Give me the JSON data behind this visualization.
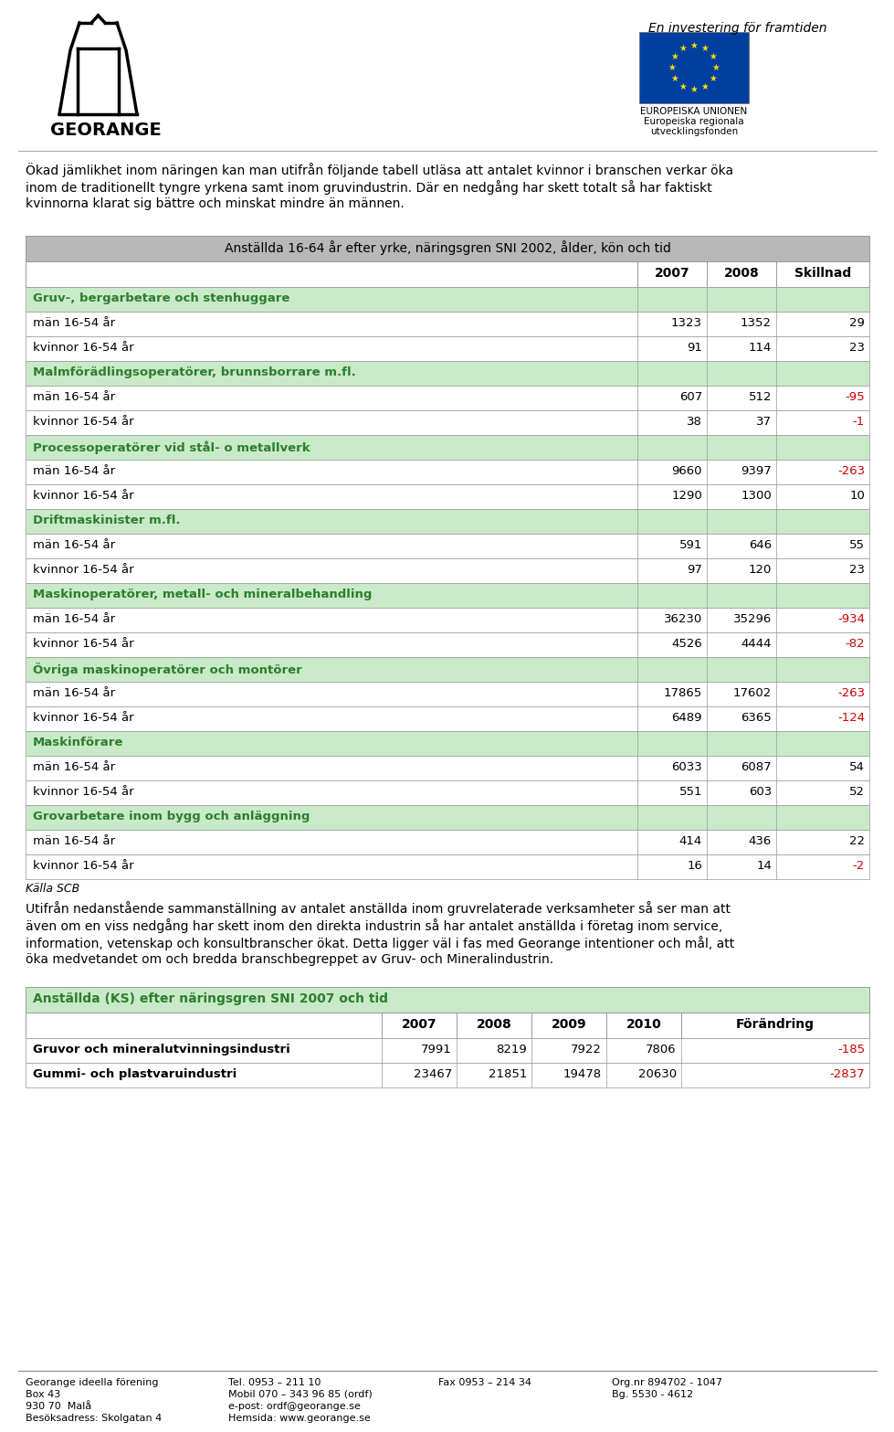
{
  "page_bg": "#ffffff",
  "top_italic_text": "En investering för framtiden",
  "intro_text": "Ökad jämlikhet inom näringen kan man utifrån följande tabell utläsa att antalet kvinnor i branschen verkar öka\ninom de traditionellt tyngre yrkena samt inom gruvindustrin. Där en nedgång har skett totalt så har faktiskt\nkvinnorna klarat sig bättre och minskat mindre än männen.",
  "table1_title": "Anställda 16-64 år efter yrke, näringsgren SNI 2002, ålder, kön och tid",
  "table1_rows": [
    {
      "label": "Gruv-, bergarbetare och stenhuggare",
      "v2007": "",
      "v2008": "",
      "skillnad": "",
      "is_category": true,
      "skillnad_neg": false
    },
    {
      "label": "män 16-54 år",
      "v2007": "1323",
      "v2008": "1352",
      "skillnad": "29",
      "is_category": false,
      "skillnad_neg": false
    },
    {
      "label": "kvinnor 16-54 år",
      "v2007": "91",
      "v2008": "114",
      "skillnad": "23",
      "is_category": false,
      "skillnad_neg": false
    },
    {
      "label": "Malmförädlingsoperatörer, brunnsborrare m.fl.",
      "v2007": "",
      "v2008": "",
      "skillnad": "",
      "is_category": true,
      "skillnad_neg": false
    },
    {
      "label": "män 16-54 år",
      "v2007": "607",
      "v2008": "512",
      "skillnad": "-95",
      "is_category": false,
      "skillnad_neg": true
    },
    {
      "label": "kvinnor 16-54 år",
      "v2007": "38",
      "v2008": "37",
      "skillnad": "-1",
      "is_category": false,
      "skillnad_neg": true
    },
    {
      "label": "Processoperatörer vid stål- o metallverk",
      "v2007": "",
      "v2008": "",
      "skillnad": "",
      "is_category": true,
      "skillnad_neg": false
    },
    {
      "label": "män 16-54 år",
      "v2007": "9660",
      "v2008": "9397",
      "skillnad": "-263",
      "is_category": false,
      "skillnad_neg": true
    },
    {
      "label": "kvinnor 16-54 år",
      "v2007": "1290",
      "v2008": "1300",
      "skillnad": "10",
      "is_category": false,
      "skillnad_neg": false
    },
    {
      "label": "Driftmaskinister m.fl.",
      "v2007": "",
      "v2008": "",
      "skillnad": "",
      "is_category": true,
      "skillnad_neg": false
    },
    {
      "label": "män 16-54 år",
      "v2007": "591",
      "v2008": "646",
      "skillnad": "55",
      "is_category": false,
      "skillnad_neg": false
    },
    {
      "label": "kvinnor 16-54 år",
      "v2007": "97",
      "v2008": "120",
      "skillnad": "23",
      "is_category": false,
      "skillnad_neg": false
    },
    {
      "label": "Maskinoperatörer, metall- och mineralbehandling",
      "v2007": "",
      "v2008": "",
      "skillnad": "",
      "is_category": true,
      "skillnad_neg": false
    },
    {
      "label": "män 16-54 år",
      "v2007": "36230",
      "v2008": "35296",
      "skillnad": "-934",
      "is_category": false,
      "skillnad_neg": true
    },
    {
      "label": "kvinnor 16-54 år",
      "v2007": "4526",
      "v2008": "4444",
      "skillnad": "-82",
      "is_category": false,
      "skillnad_neg": true
    },
    {
      "label": "Övriga maskinoperatörer och montörer",
      "v2007": "",
      "v2008": "",
      "skillnad": "",
      "is_category": true,
      "skillnad_neg": false
    },
    {
      "label": "män 16-54 år",
      "v2007": "17865",
      "v2008": "17602",
      "skillnad": "-263",
      "is_category": false,
      "skillnad_neg": true
    },
    {
      "label": "kvinnor 16-54 år",
      "v2007": "6489",
      "v2008": "6365",
      "skillnad": "-124",
      "is_category": false,
      "skillnad_neg": true
    },
    {
      "label": "Maskinförare",
      "v2007": "",
      "v2008": "",
      "skillnad": "",
      "is_category": true,
      "skillnad_neg": false
    },
    {
      "label": "män 16-54 år",
      "v2007": "6033",
      "v2008": "6087",
      "skillnad": "54",
      "is_category": false,
      "skillnad_neg": false
    },
    {
      "label": "kvinnor 16-54 år",
      "v2007": "551",
      "v2008": "603",
      "skillnad": "52",
      "is_category": false,
      "skillnad_neg": false
    },
    {
      "label": "Grovarbetare inom bygg och anläggning",
      "v2007": "",
      "v2008": "",
      "skillnad": "",
      "is_category": true,
      "skillnad_neg": false
    },
    {
      "label": "män 16-54 år",
      "v2007": "414",
      "v2008": "436",
      "skillnad": "22",
      "is_category": false,
      "skillnad_neg": false
    },
    {
      "label": "kvinnor 16-54 år",
      "v2007": "16",
      "v2008": "14",
      "skillnad": "-2",
      "is_category": false,
      "skillnad_neg": true
    }
  ],
  "kalla_text": "Källa SCB",
  "middle_text": "Utifrån nedanstående sammanställning av antalet anställda inom gruvrelaterade verksamheter så ser man att\näven om en viss nedgång har skett inom den direkta industrin så har antalet anställda i företag inom service,\ninformation, vetenskap och konsultbranscher ökat. Detta ligger väl i fas med Georange intentioner och mål, att\nöka medvetandet om och bredda branschbegreppet av Gruv- och Mineralindustrin.",
  "table2_title": "Anställda (KS) efter näringsgren SNI 2007 och tid",
  "table2_rows": [
    {
      "label": "Gruvor och mineralutvinningsindustri",
      "v2007": "7991",
      "v2008": "8219",
      "v2009": "7922",
      "v2010": "7806",
      "forandring": "-185",
      "neg": true
    },
    {
      "label": "Gummi- och plastvaruindustri",
      "v2007": "23467",
      "v2008": "21851",
      "v2009": "19478",
      "v2010": "20630",
      "forandring": "-2837",
      "neg": true
    }
  ],
  "footer_col1": "Georange ideella förening\nBox 43\n930 70  Malå\nBesöksadress: Skolgatan 4",
  "footer_col2": "Tel. 0953 – 211 10\nMobil 070 – 343 96 85 (ordf)\ne-post: ordf@georange.se\nHemsida: www.georange.se",
  "footer_col3": "Fax 0953 – 214 34",
  "footer_col4": "Org.nr 894702 - 1047\nBg. 5530 - 4612",
  "cat_bg": "#c8eac8",
  "cat_text_color": "#2d7d2d",
  "neg_color": "#cc0000",
  "pos_color": "#000000",
  "border_color": "#999999",
  "table_title_bg": "#b8b8b8",
  "table2_title_bg": "#c8eac8"
}
